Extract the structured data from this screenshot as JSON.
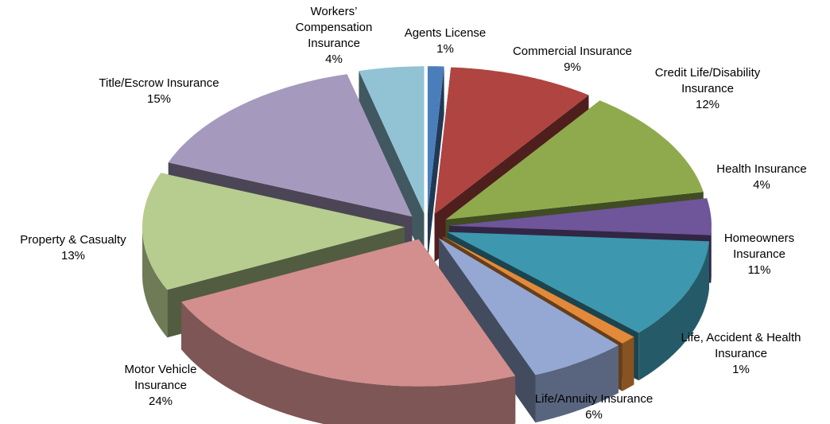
{
  "chart_data": {
    "type": "pie",
    "categories": [
      "Agents License",
      "Commercial Insurance",
      "Credit Life/Disability Insurance",
      "Health Insurance",
      "Homeowners Insurance",
      "Life, Accident & Health Insurance",
      "Life/Annuity Insurance",
      "Motor Vehicle Insurance",
      "Property & Casualty",
      "Title/Escrow Insurance",
      "Workers’ Compensation Insurance"
    ],
    "values": [
      1,
      9,
      12,
      4,
      11,
      1,
      6,
      24,
      13,
      15,
      4
    ],
    "value_labels": [
      "1%",
      "9%",
      "12%",
      "4%",
      "11%",
      "1%",
      "6%",
      "24%",
      "13%",
      "15%",
      "4%"
    ],
    "colors": [
      "#4a7ebb",
      "#b04440",
      "#8faa4c",
      "#6f559a",
      "#3d97ae",
      "#e28a3a",
      "#95a8d4",
      "#d28f8d",
      "#b7cd8f",
      "#a699be",
      "#91c3d5"
    ]
  }
}
